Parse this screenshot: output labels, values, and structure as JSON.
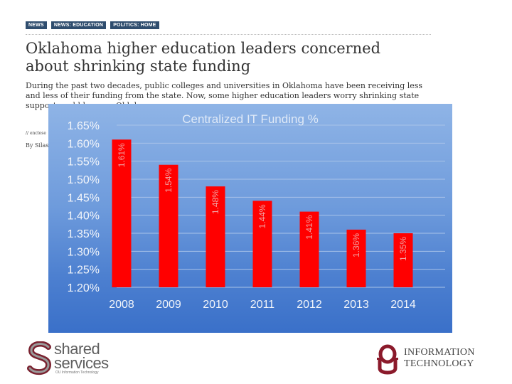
{
  "article": {
    "tags": [
      "NEWS",
      "NEWS: EDUCATION",
      "POLITICS: HOME"
    ],
    "headline": "Oklahoma higher education leaders concerned about shrinking state funding",
    "lede": "During the past two decades, public colleges and universities in Oklahoma have been receiving less and less of their funding from the state. Now, some higher education leaders worry shrinking state support could hamper Oklaho",
    "fragment_1": "// enclose",
    "fragment_2": "By Silas"
  },
  "chart_data": {
    "type": "bar",
    "title": "Centralized IT Funding %",
    "categories": [
      "2008",
      "2009",
      "2010",
      "2011",
      "2012",
      "2013",
      "2014"
    ],
    "values": [
      1.61,
      1.54,
      1.48,
      1.44,
      1.41,
      1.36,
      1.35
    ],
    "data_labels": [
      "1.61%",
      "1.54%",
      "1.48%",
      "1.44%",
      "1.41%",
      "1.36%",
      "1.35%"
    ],
    "ylim": [
      1.2,
      1.65
    ],
    "y_ticks": [
      1.2,
      1.25,
      1.3,
      1.35,
      1.4,
      1.45,
      1.5,
      1.55,
      1.6,
      1.65
    ],
    "y_tick_labels": [
      "1.20%",
      "1.25%",
      "1.30%",
      "1.35%",
      "1.40%",
      "1.45%",
      "1.50%",
      "1.55%",
      "1.60%",
      "1.65%"
    ],
    "grid": true,
    "bar_color": "#ff0000",
    "label_color": "#f0a0a0"
  },
  "logos": {
    "shared_services": {
      "line1": "shared",
      "line2": "services",
      "sub": "OU Information Technology"
    },
    "ou_it": {
      "line1": "INFORMATION",
      "line2": "TECHNOLOGY"
    }
  }
}
